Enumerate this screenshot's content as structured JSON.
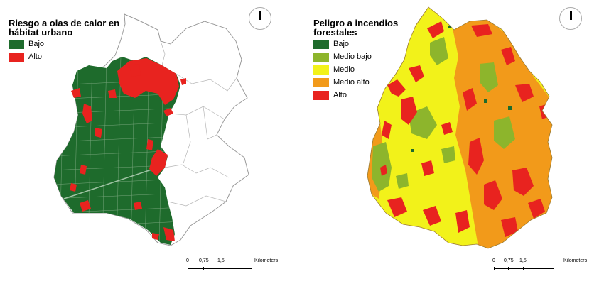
{
  "left_map": {
    "title": "Riesgo a olas de calor en hábitat urbano",
    "legend": [
      {
        "label": "Bajo",
        "color": "#1e6b2c",
        "swatch": "legend-swatch-bajo"
      },
      {
        "label": "Alto",
        "color": "#e8231f",
        "swatch": "legend-swatch-alto"
      }
    ],
    "scale": {
      "ticks": [
        "0",
        "0,75",
        "1,5"
      ],
      "unit": "Kilometers"
    },
    "north_icon": "north-arrow-icon"
  },
  "right_map": {
    "title": "Peligro a incendios forestales",
    "legend": [
      {
        "label": "Bajo",
        "color": "#1e6b2c"
      },
      {
        "label": "Medio bajo",
        "color": "#8db52c"
      },
      {
        "label": "Medio",
        "color": "#f2f21a"
      },
      {
        "label": "Medio alto",
        "color": "#f29a1a"
      },
      {
        "label": "Alto",
        "color": "#e8231f"
      }
    ],
    "scale": {
      "ticks": [
        "0",
        "0,75",
        "1,5"
      ],
      "unit": "Kilometers"
    },
    "north_icon": "north-arrow-icon"
  }
}
